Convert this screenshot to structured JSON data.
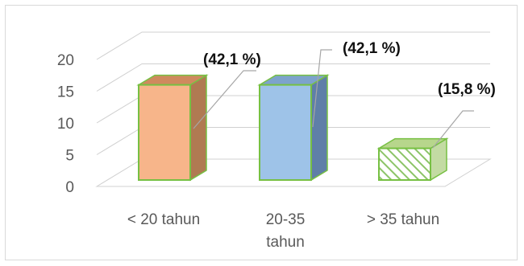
{
  "chart_data": {
    "type": "bar",
    "categories": [
      "< 20 tahun",
      "20-35 tahun",
      "> 35 tahun"
    ],
    "category_lines": [
      [
        "< 20 tahun"
      ],
      [
        "20-35",
        "tahun"
      ],
      [
        "> 35 tahun"
      ]
    ],
    "values": [
      16,
      16,
      6
    ],
    "data_labels": [
      "(42,1 %)",
      "(42,1 %)",
      "(15,8 %)"
    ],
    "yticks": [
      "0",
      "5",
      "10",
      "15",
      "20"
    ],
    "ylim": [
      0,
      20
    ],
    "grid": true,
    "legend": "none",
    "title": "",
    "xlabel": "",
    "ylabel": "",
    "colors": {
      "bar_fill": [
        "#f7b58a",
        "#9ec3e8",
        "#ffffff"
      ],
      "bar_side": [
        "#b07a52",
        "#5f7fa8",
        "#c3dba3"
      ],
      "bar_top": [
        "#cf8a5e",
        "#7da3cc",
        "#b7d68c"
      ],
      "bar_outline": "#77c043",
      "hatch": "#8cc468",
      "gridline": "#d0d0d0",
      "leader": "#a6a6a6"
    }
  }
}
